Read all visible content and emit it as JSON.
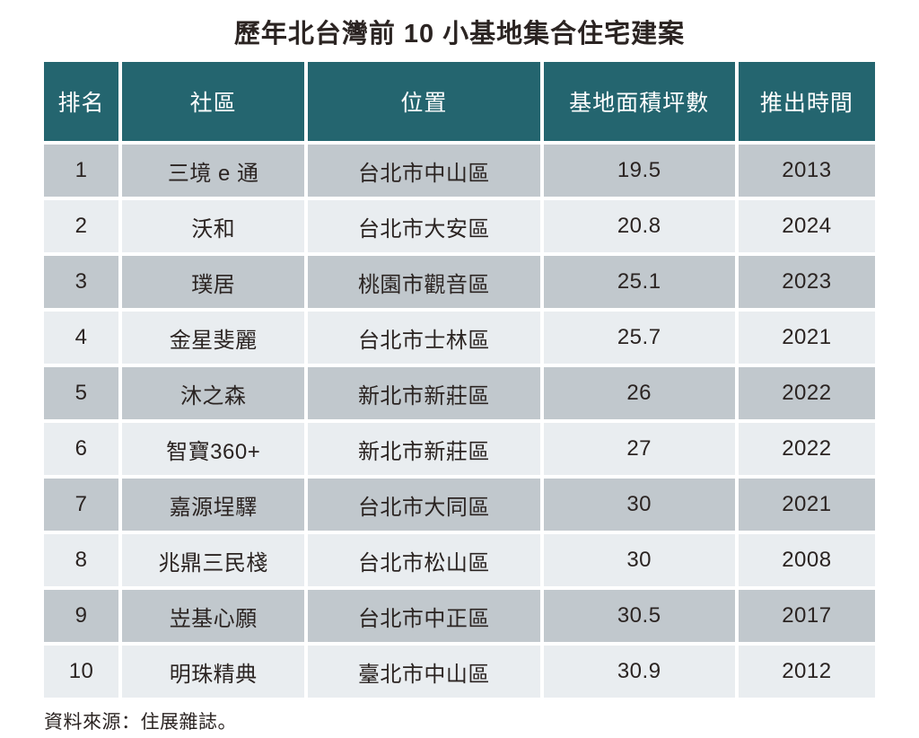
{
  "title": "歷年北台灣前 10 小基地集合住宅建案",
  "table": {
    "headers": [
      "排名",
      "社區",
      "位置",
      "基地面積坪數",
      "推出時間"
    ],
    "rows": [
      [
        "1",
        "三境 e 通",
        "台北市中山區",
        "19.5",
        "2013"
      ],
      [
        "2",
        "沃和",
        "台北市大安區",
        "20.8",
        "2024"
      ],
      [
        "3",
        "璞居",
        "桃園市觀音區",
        "25.1",
        "2023"
      ],
      [
        "4",
        "金星斐麗",
        "台北市士林區",
        "25.7",
        "2021"
      ],
      [
        "5",
        "沐之森",
        "新北市新莊區",
        "26",
        "2022"
      ],
      [
        "6",
        "智寶360+",
        "新北市新莊區",
        "27",
        "2022"
      ],
      [
        "7",
        "嘉源埕驛",
        "台北市大同區",
        "30",
        "2021"
      ],
      [
        "8",
        "兆鼎三民棧",
        "台北市松山區",
        "30",
        "2008"
      ],
      [
        "9",
        "岦基心願",
        "台北市中正區",
        "30.5",
        "2017"
      ],
      [
        "10",
        "明珠精典",
        "臺北市中山區",
        "30.9",
        "2012"
      ]
    ]
  },
  "footer": {
    "source": "資料來源：住展雜誌。"
  },
  "colors": {
    "header_bg": "#24656F",
    "header_text": "#ffffff",
    "row_dark": "#c1c8cd",
    "row_light": "#e9edf0",
    "text": "#2b2422"
  },
  "chart_data": {
    "type": "table",
    "title": "歷年北台灣前 10 小基地集合住宅建案",
    "columns": [
      "排名",
      "社區",
      "位置",
      "基地面積坪數",
      "推出時間"
    ],
    "rows": [
      [
        1,
        "三境 e 通",
        "台北市中山區",
        19.5,
        2013
      ],
      [
        2,
        "沃和",
        "台北市大安區",
        20.8,
        2024
      ],
      [
        3,
        "璞居",
        "桃園市觀音區",
        25.1,
        2023
      ],
      [
        4,
        "金星斐麗",
        "台北市士林區",
        25.7,
        2021
      ],
      [
        5,
        "沐之森",
        "新北市新莊區",
        26,
        2022
      ],
      [
        6,
        "智寶360+",
        "新北市新莊區",
        27,
        2022
      ],
      [
        7,
        "嘉源埕驛",
        "台北市大同區",
        30,
        2021
      ],
      [
        8,
        "兆鼎三民棧",
        "台北市松山區",
        30,
        2008
      ],
      [
        9,
        "岦基心願",
        "台北市中正區",
        30.5,
        2017
      ],
      [
        10,
        "明珠精典",
        "臺北市中山區",
        30.9,
        2012
      ]
    ],
    "source": "資料來源：住展雜誌。",
    "layout": {
      "header_style": "teal-band",
      "row_striping": "odd-dark-even-light",
      "alignment": "center"
    }
  }
}
